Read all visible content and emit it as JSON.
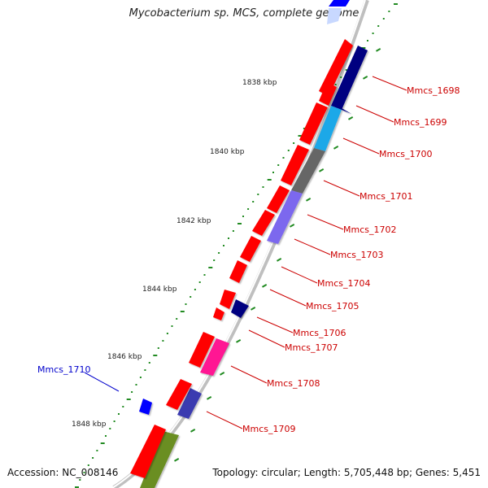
{
  "title": "Mycobacterium sp. MCS, complete genome",
  "footer": {
    "accession": "Accession: NC_008146",
    "summary": "Topology: circular; Length: 5,705,448 bp; Genes: 5,451"
  },
  "ruler": {
    "labels": [
      "1838 kbp",
      "1840 kbp",
      "1842 kbp",
      "1844 kbp",
      "1846 kbp",
      "1848 kbp"
    ]
  },
  "colors": {
    "forward_gene": "#ff0000",
    "label_default": "#cc0000",
    "label_highlight": "#0000cc",
    "tick": "#228b22",
    "backbone": "#999999",
    "navy": "#000080",
    "cyan": "#1ea8e8",
    "gray": "#666666",
    "violet": "#7b68ee",
    "pink": "#ff1493",
    "olive": "#6b8e23",
    "blue": "#0000ff"
  },
  "genes": [
    {
      "id": "Mmcs_1698",
      "label": "Mmcs_1698",
      "color": "#cc0000"
    },
    {
      "id": "Mmcs_1699",
      "label": "Mmcs_1699",
      "color": "#cc0000"
    },
    {
      "id": "Mmcs_1700",
      "label": "Mmcs_1700",
      "color": "#cc0000"
    },
    {
      "id": "Mmcs_1701",
      "label": "Mmcs_1701",
      "color": "#cc0000"
    },
    {
      "id": "Mmcs_1702",
      "label": "Mmcs_1702",
      "color": "#cc0000"
    },
    {
      "id": "Mmcs_1703",
      "label": "Mmcs_1703",
      "color": "#cc0000"
    },
    {
      "id": "Mmcs_1704",
      "label": "Mmcs_1704",
      "color": "#cc0000"
    },
    {
      "id": "Mmcs_1705",
      "label": "Mmcs_1705",
      "color": "#cc0000"
    },
    {
      "id": "Mmcs_1706",
      "label": "Mmcs_1706",
      "color": "#cc0000"
    },
    {
      "id": "Mmcs_1707",
      "label": "Mmcs_1707",
      "color": "#cc0000"
    },
    {
      "id": "Mmcs_1708",
      "label": "Mmcs_1708",
      "color": "#cc0000"
    },
    {
      "id": "Mmcs_1709",
      "label": "Mmcs_1709",
      "color": "#cc0000"
    },
    {
      "id": "Mmcs_1710",
      "label": "Mmcs_1710",
      "color": "#0000cc"
    }
  ]
}
